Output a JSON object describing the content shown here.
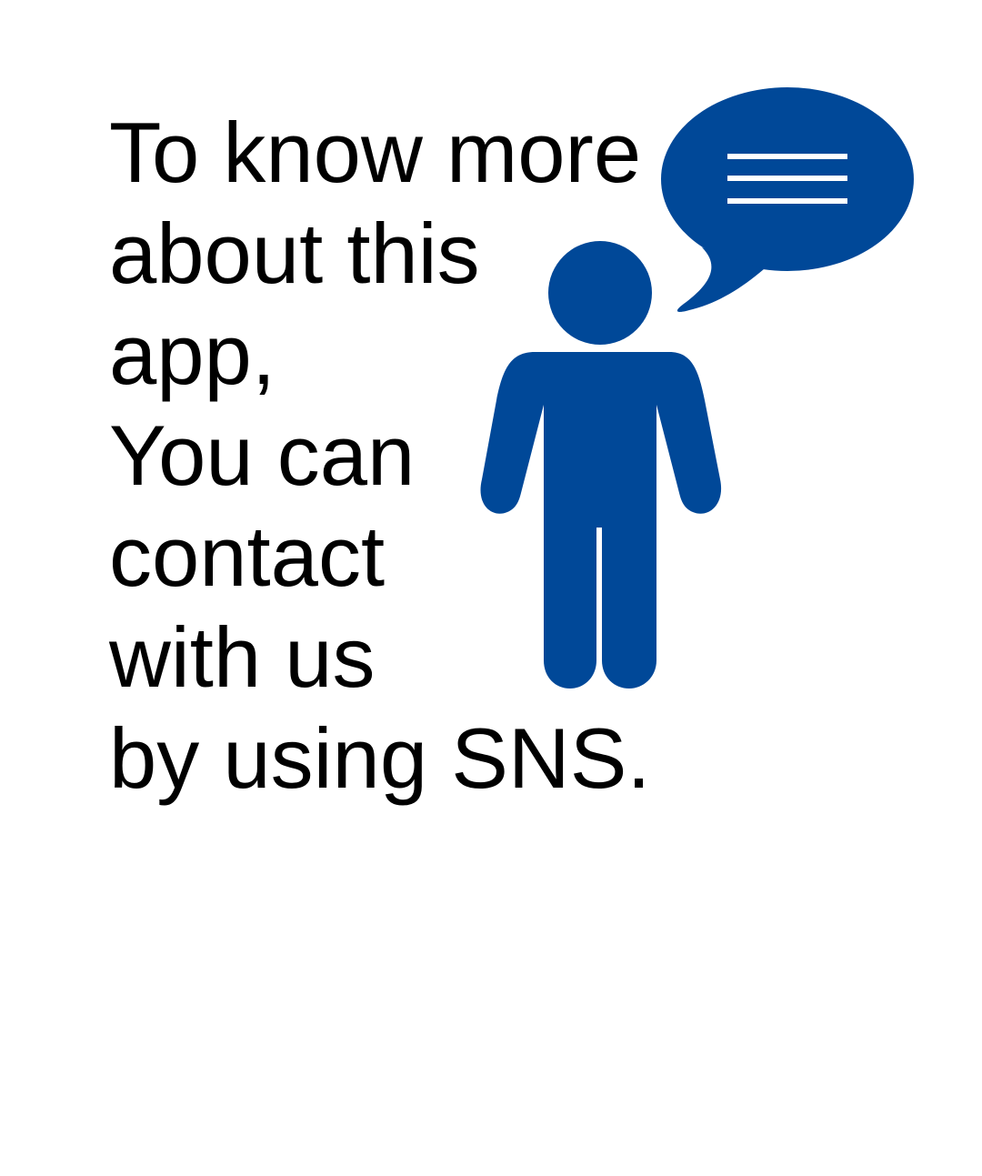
{
  "message": {
    "lines": [
      "To know more",
      "about this",
      "app,",
      "You can",
      "contact",
      "with us",
      "by using SNS."
    ]
  },
  "illustration": {
    "figure_icon": "person-icon",
    "bubble_icon": "speech-bubble-icon",
    "accent_color": "#004898",
    "bubble_line_color": "#ffffff"
  }
}
